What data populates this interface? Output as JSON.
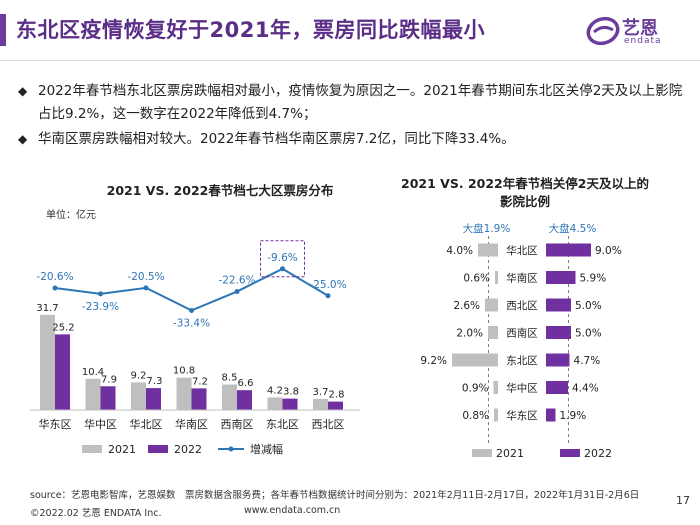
{
  "header": {
    "title": "东北区疫情恢复好于2021年，票房同比跌幅最小",
    "logo_text": "艺恩",
    "logo_sub": "endata"
  },
  "bullets": [
    "2022年春节档东北区票房跌幅相对最小，疫情恢复为原因之一。2021年春节期间东北区关停2天及以上影院占比9.2%，这一数字在2022年降低到4.7%；",
    "华南区票房跌幅相对较大。2022年春节档华南区票房7.2亿，同比下降33.4%。"
  ],
  "colors": {
    "c2021": "#bfbfbf",
    "c2022": "#7030a0",
    "line": "#2e75b6",
    "label_blue": "#2e75b6",
    "title_purple": "#5a2d86"
  },
  "chart_data": [
    {
      "type": "bar",
      "title": "2021 VS. 2022春节档七大区票房分布",
      "unit": "单位：亿元",
      "categories": [
        "华东区",
        "华中区",
        "华北区",
        "华南区",
        "西南区",
        "东北区",
        "西北区"
      ],
      "series": [
        {
          "name": "2021",
          "values": [
            31.7,
            10.4,
            9.2,
            10.8,
            8.5,
            4.2,
            3.7
          ]
        },
        {
          "name": "2022",
          "values": [
            25.2,
            7.9,
            7.3,
            7.2,
            6.6,
            3.8,
            2.8
          ]
        }
      ],
      "line_series": {
        "name": "增减幅",
        "labels": [
          "-20.6%",
          "-23.9%",
          "-20.5%",
          "-33.4%",
          "-22.6%",
          "-9.6%",
          "-25.0%"
        ],
        "values": [
          -20.6,
          -23.9,
          -20.5,
          -33.4,
          -22.6,
          -9.6,
          -25.0
        ]
      },
      "legend": [
        "2021",
        "2022",
        "增减幅"
      ]
    },
    {
      "type": "bar",
      "title": "2021 VS. 2022年春节档关停2天及以上的影院比例",
      "categories": [
        "华北区",
        "华南区",
        "西北区",
        "西南区",
        "东北区",
        "华中区",
        "华东区"
      ],
      "series": [
        {
          "name": "2021",
          "values": [
            4.0,
            0.6,
            2.6,
            2.0,
            9.2,
            0.9,
            0.8
          ],
          "labels": [
            "4.0%",
            "0.6%",
            "2.6%",
            "2.0%",
            "9.2%",
            "0.9%",
            "0.8%"
          ]
        },
        {
          "name": "2022",
          "values": [
            9.0,
            5.9,
            5.0,
            5.0,
            4.7,
            4.4,
            1.9
          ],
          "labels": [
            "9.0%",
            "5.9%",
            "5.0%",
            "5.0%",
            "4.7%",
            "4.4%",
            "1.9%"
          ]
        }
      ],
      "reference_labels": {
        "left": "大盘1.9%",
        "right": "大盘4.5%"
      },
      "legend": [
        "2021",
        "2022"
      ]
    }
  ],
  "footer": {
    "source": "source：艺恩电影智库，艺恩娱数　票房数据含服务费；各年春节档数据统计时间分别为：2021年2月11日-2月17日，2022年1月31日-2月6日",
    "copyright": "©2022.02 艺恩 ENDATA Inc.",
    "website": "www.endata.com.cn",
    "page": "17"
  }
}
